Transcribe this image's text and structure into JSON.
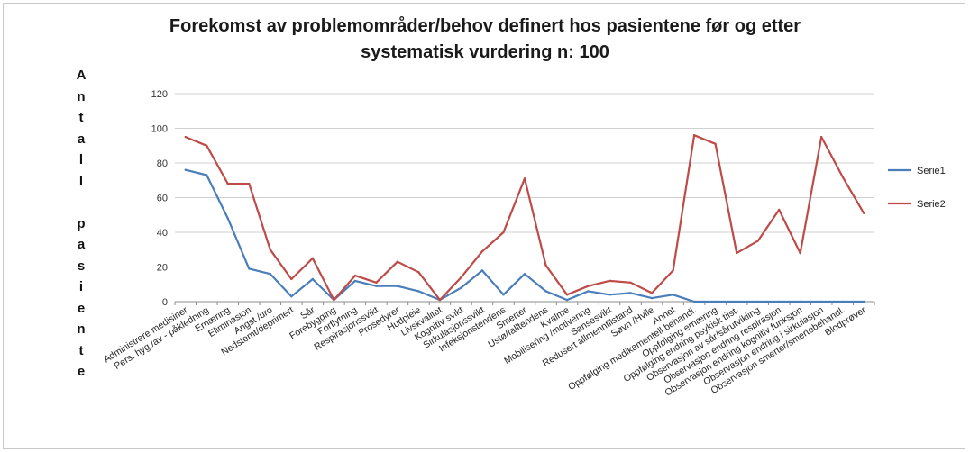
{
  "chart_data": {
    "type": "line",
    "title_line1": "Forekomst av problemområder/behov  definert hos pasientene før og etter",
    "title_line2": "systematisk vurdering     n: 100",
    "ylabel": "Antall pasiente",
    "ylim": [
      0,
      120
    ],
    "yticks": [
      "0",
      "20",
      "40",
      "60",
      "80",
      "100",
      "120"
    ],
    "grid": true,
    "legend_position": "right",
    "categories": [
      "Administrere medisiner",
      "Pers. hyg./av - påkledning",
      "Ernæring",
      "Eliminasjon",
      "Angst /uro",
      "Nedstemt/deprimert",
      "Sår",
      "Forebygging",
      "Forflytning",
      "Respirasjonssvikt",
      "Prosedyrer",
      "Hudpleie",
      "Livskvalitet",
      "Kognitiv svikt",
      "Sirkulasjonssvikt",
      "Infeksjonstendens",
      "Smerter",
      "Ustø/falltendens",
      "Kvalme",
      "Mobilisering /motivering",
      "Sansesvikt",
      "Redusert allmenntilstand",
      "Søvn /Hvile",
      "Annet",
      "Oppfølging medikamentell behandl.",
      "Oppfølging ernæring",
      "Oppfølging endring psykisk tilst.",
      "Observasjon av sår/sårutvikling",
      "Observasjon endring respirasjon",
      "Observasjon endring kognitiv funksjon",
      "Observasjon endring i sirkulasjon",
      "Observasjon smerter/smertebehandl.",
      "Blodprøver"
    ],
    "series": [
      {
        "name": "Serie1",
        "color": "#4a7ebb",
        "values": [
          76,
          73,
          48,
          19,
          16,
          3,
          13,
          1,
          12,
          9,
          9,
          6,
          1,
          8,
          18,
          4,
          16,
          6,
          1,
          6,
          4,
          5,
          2,
          4,
          0,
          0,
          0,
          0,
          0,
          0,
          0,
          0,
          0
        ]
      },
      {
        "name": "Serie2",
        "color": "#be4b48",
        "values": [
          95,
          90,
          68,
          68,
          30,
          13,
          25,
          1,
          15,
          11,
          23,
          17,
          1,
          14,
          29,
          40,
          71,
          21,
          4,
          9,
          12,
          11,
          5,
          18,
          96,
          91,
          28,
          35,
          53,
          28,
          95,
          72,
          51
        ]
      }
    ]
  }
}
